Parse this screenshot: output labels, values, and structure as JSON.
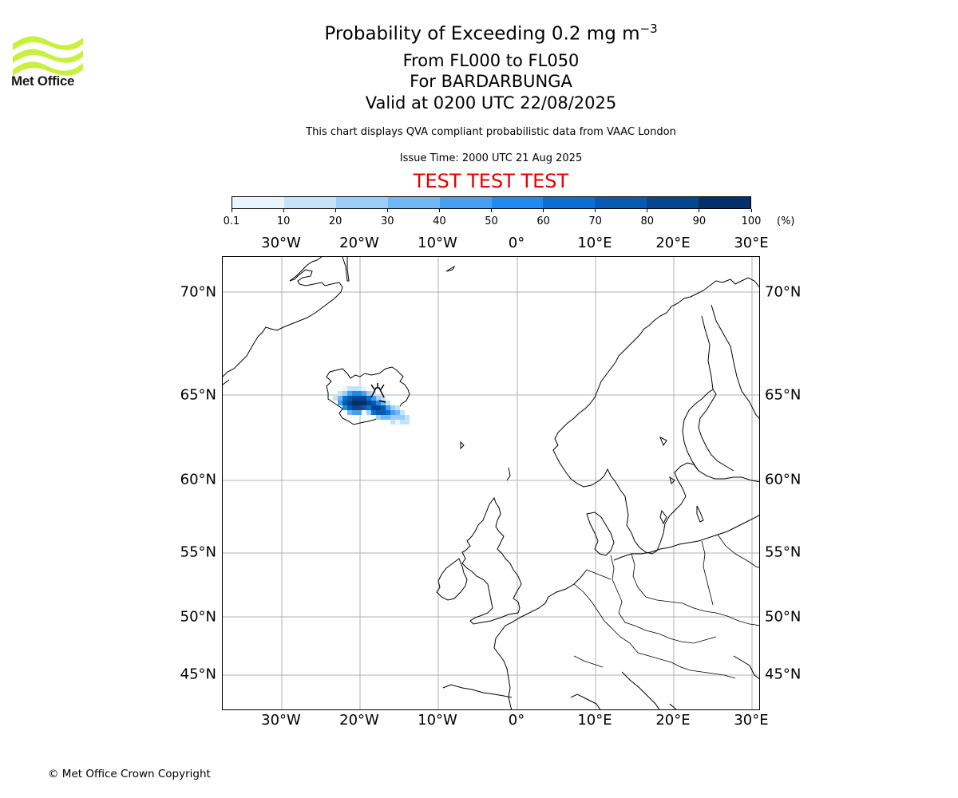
{
  "logo": {
    "text": "Met Office",
    "stripe_color": "#c8f03c"
  },
  "title": {
    "main": "Probability of Exceeding 0.2 mg m",
    "main_sup": "−3",
    "line2": "From FL000 to FL050",
    "line3": "For BARDARBUNGA",
    "line4": "Valid at 0200 UTC 22/08/2025"
  },
  "subtitle": "This chart displays QVA compliant probabilistic data from VAAC London",
  "issue_time": "Issue Time: 2000 UTC 21 Aug 2025",
  "test_banner": "TEST TEST TEST",
  "colorbar": {
    "ticks": [
      "0.1",
      "10",
      "20",
      "30",
      "40",
      "50",
      "60",
      "70",
      "80",
      "90",
      "100"
    ],
    "unit": "(%)",
    "colors": [
      "#e9f4ff",
      "#c6e2fb",
      "#9ecdf8",
      "#71b6f5",
      "#45a0f2",
      "#1e8aee",
      "#0b6fd2",
      "#0859b1",
      "#064690",
      "#03306a"
    ]
  },
  "map": {
    "lon_labels": [
      "30°W",
      "20°W",
      "10°W",
      "0°",
      "10°E",
      "20°E",
      "30°E"
    ],
    "lat_labels": [
      "70°N",
      "65°N",
      "60°N",
      "55°N",
      "50°N",
      "45°N"
    ],
    "volcano": "BARDARBUNGA"
  },
  "copyright": "© Met Office Crown Copyright"
}
